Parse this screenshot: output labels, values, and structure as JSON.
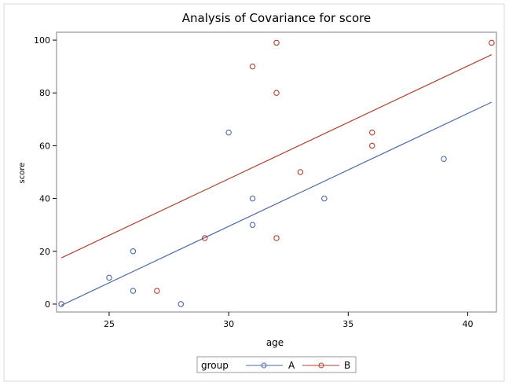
{
  "chart_data": {
    "type": "scatter",
    "title": "Analysis of Covariance for score",
    "xlabel": "age",
    "ylabel": "score",
    "xlim": [
      22.8,
      41.2
    ],
    "ylim": [
      -3,
      103
    ],
    "xticks": [
      25,
      30,
      35,
      40
    ],
    "yticks": [
      0,
      20,
      40,
      60,
      80,
      100
    ],
    "grid": false,
    "legend": {
      "title": "group",
      "placement": "bottom-center"
    },
    "series": [
      {
        "name": "A",
        "color": "#4a6aa8",
        "marker": "circle-open",
        "points": [
          {
            "x": 23,
            "y": 0
          },
          {
            "x": 25,
            "y": 10
          },
          {
            "x": 26,
            "y": 20
          },
          {
            "x": 26,
            "y": 5
          },
          {
            "x": 28,
            "y": 0
          },
          {
            "x": 30,
            "y": 65
          },
          {
            "x": 31,
            "y": 40
          },
          {
            "x": 31,
            "y": 30
          },
          {
            "x": 34,
            "y": 40
          },
          {
            "x": 39,
            "y": 55
          }
        ],
        "fit_line": {
          "x": [
            23,
            41
          ],
          "y": [
            -0.5,
            76.5
          ]
        }
      },
      {
        "name": "B",
        "color": "#b0412e",
        "marker": "circle-open",
        "points": [
          {
            "x": 27,
            "y": 5
          },
          {
            "x": 29,
            "y": 25
          },
          {
            "x": 31,
            "y": 90
          },
          {
            "x": 32,
            "y": 99
          },
          {
            "x": 32,
            "y": 80
          },
          {
            "x": 32,
            "y": 25
          },
          {
            "x": 33,
            "y": 50
          },
          {
            "x": 36,
            "y": 65
          },
          {
            "x": 36,
            "y": 60
          },
          {
            "x": 41,
            "y": 99
          }
        ],
        "fit_line": {
          "x": [
            23,
            41
          ],
          "y": [
            17.5,
            94.5
          ]
        }
      }
    ]
  }
}
